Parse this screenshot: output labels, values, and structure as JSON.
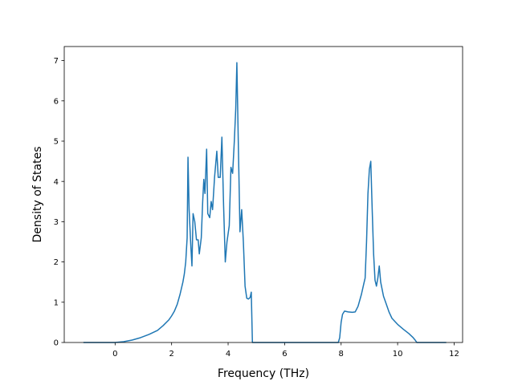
{
  "chart_data": {
    "type": "line",
    "title": "",
    "xlabel": "Frequency (THz)",
    "ylabel": "Density of States",
    "xlim": [
      -1.8,
      12.3
    ],
    "ylim": [
      0,
      7.35
    ],
    "xticks": [
      0,
      2,
      4,
      6,
      8,
      10,
      12
    ],
    "yticks": [
      0,
      1,
      2,
      3,
      4,
      5,
      6,
      7
    ],
    "xtick_labels": [
      "0",
      "2",
      "4",
      "6",
      "8",
      "10",
      "12"
    ],
    "ytick_labels": [
      "0",
      "1",
      "2",
      "3",
      "4",
      "5",
      "6",
      "7"
    ],
    "grid": false,
    "legend": "none",
    "series": [
      {
        "color": "#1f77b4",
        "points": [
          [
            -1.1,
            0.0
          ],
          [
            -0.6,
            0.0
          ],
          [
            -0.2,
            0.0
          ],
          [
            0.0,
            0.0
          ],
          [
            0.3,
            0.02
          ],
          [
            0.6,
            0.06
          ],
          [
            0.9,
            0.12
          ],
          [
            1.2,
            0.2
          ],
          [
            1.5,
            0.3
          ],
          [
            1.7,
            0.42
          ],
          [
            1.9,
            0.56
          ],
          [
            2.0,
            0.66
          ],
          [
            2.1,
            0.78
          ],
          [
            2.2,
            0.95
          ],
          [
            2.3,
            1.2
          ],
          [
            2.4,
            1.5
          ],
          [
            2.45,
            1.7
          ],
          [
            2.5,
            2.0
          ],
          [
            2.55,
            2.6
          ],
          [
            2.58,
            4.6
          ],
          [
            2.62,
            3.3
          ],
          [
            2.68,
            2.4
          ],
          [
            2.72,
            1.9
          ],
          [
            2.76,
            3.2
          ],
          [
            2.82,
            3.0
          ],
          [
            2.88,
            2.55
          ],
          [
            2.94,
            2.55
          ],
          [
            2.98,
            2.2
          ],
          [
            3.05,
            2.6
          ],
          [
            3.1,
            3.5
          ],
          [
            3.14,
            4.05
          ],
          [
            3.18,
            3.7
          ],
          [
            3.24,
            4.8
          ],
          [
            3.28,
            3.2
          ],
          [
            3.35,
            3.1
          ],
          [
            3.4,
            3.5
          ],
          [
            3.45,
            3.3
          ],
          [
            3.52,
            4.1
          ],
          [
            3.6,
            4.75
          ],
          [
            3.65,
            4.1
          ],
          [
            3.72,
            4.1
          ],
          [
            3.78,
            5.1
          ],
          [
            3.84,
            3.4
          ],
          [
            3.9,
            2.0
          ],
          [
            3.96,
            2.5
          ],
          [
            4.04,
            2.9
          ],
          [
            4.1,
            4.35
          ],
          [
            4.16,
            4.2
          ],
          [
            4.22,
            5.0
          ],
          [
            4.27,
            5.8
          ],
          [
            4.31,
            6.95
          ],
          [
            4.36,
            5.0
          ],
          [
            4.42,
            2.75
          ],
          [
            4.48,
            3.3
          ],
          [
            4.54,
            2.5
          ],
          [
            4.6,
            1.4
          ],
          [
            4.66,
            1.1
          ],
          [
            4.72,
            1.08
          ],
          [
            4.78,
            1.12
          ],
          [
            4.82,
            1.25
          ],
          [
            4.86,
            0.0
          ],
          [
            5.5,
            0.0
          ],
          [
            6.5,
            0.0
          ],
          [
            7.5,
            0.0
          ],
          [
            7.9,
            0.0
          ],
          [
            7.95,
            0.12
          ],
          [
            8.0,
            0.5
          ],
          [
            8.05,
            0.7
          ],
          [
            8.12,
            0.78
          ],
          [
            8.25,
            0.76
          ],
          [
            8.4,
            0.75
          ],
          [
            8.5,
            0.76
          ],
          [
            8.6,
            0.9
          ],
          [
            8.72,
            1.2
          ],
          [
            8.8,
            1.45
          ],
          [
            8.85,
            1.6
          ],
          [
            8.9,
            2.5
          ],
          [
            8.95,
            3.7
          ],
          [
            9.0,
            4.3
          ],
          [
            9.05,
            4.5
          ],
          [
            9.1,
            3.3
          ],
          [
            9.15,
            2.2
          ],
          [
            9.2,
            1.55
          ],
          [
            9.25,
            1.4
          ],
          [
            9.3,
            1.6
          ],
          [
            9.35,
            1.9
          ],
          [
            9.4,
            1.5
          ],
          [
            9.5,
            1.15
          ],
          [
            9.6,
            0.95
          ],
          [
            9.7,
            0.75
          ],
          [
            9.8,
            0.6
          ],
          [
            10.0,
            0.45
          ],
          [
            10.2,
            0.33
          ],
          [
            10.4,
            0.22
          ],
          [
            10.55,
            0.12
          ],
          [
            10.62,
            0.06
          ],
          [
            10.68,
            0.0
          ],
          [
            11.0,
            0.0
          ],
          [
            11.7,
            0.0
          ]
        ]
      }
    ]
  }
}
